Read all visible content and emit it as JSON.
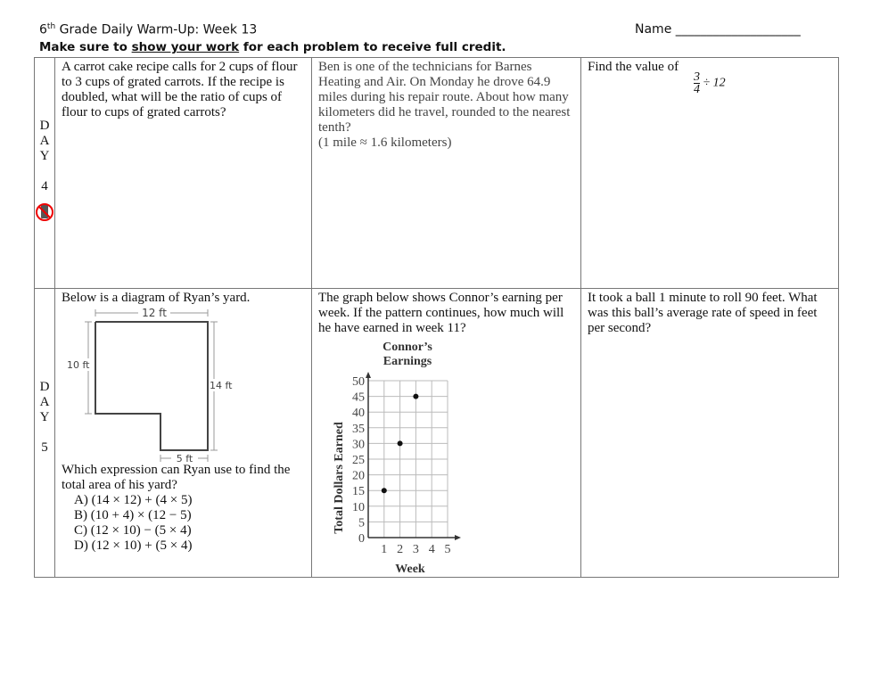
{
  "header": {
    "title_pre": "6",
    "title_sup": "th",
    "title_post": " Grade Daily Warm-Up:  Week 13",
    "name_label": "Name ____________________",
    "instr_pre": "Make sure to ",
    "instr_u": "show your work",
    "instr_post": " for each problem to receive full credit."
  },
  "day4": {
    "label": [
      "D",
      "A",
      "Y",
      "",
      "4"
    ],
    "icon": "no-phone-icon",
    "q1": "A carrot cake recipe calls for 2 cups of flour to 3 cups of grated carrots.  If the recipe is doubled, what will be the ratio of cups of flour to cups of grated carrots?",
    "q2": "Ben is one of the technicians for Barnes Heating and Air. On Monday he drove 64.9 miles during his repair route. About how many kilometers did he travel, rounded to the nearest tenth?",
    "q2_note": "(1 mile ≈ 1.6 kilometers)",
    "q3": "Find the value of",
    "q3_num": "3",
    "q3_den": "4",
    "q3_rest": "÷ 12"
  },
  "day5": {
    "label": [
      "D",
      "A",
      "Y",
      "",
      "5"
    ],
    "q1": "Below is a diagram of Ryan’s yard.",
    "yard": {
      "top": "12 ft",
      "left": "10 ft",
      "right": "14 ft",
      "bottom": "5 ft"
    },
    "q1b": "Which expression can Ryan use to find the total area of his yard?",
    "options": [
      "A)  (14 × 12) + (4 × 5)",
      "B)  (10 + 4) × (12 − 5)",
      "C)  (12 × 10) − (5 × 4)",
      "D)  (12 × 10) + (5 × 4)"
    ],
    "q2": "The graph below shows Connor’s earning per week.  If the pattern continues, how much will he have earned in week 11?",
    "q3": "It took a ball 1 minute to roll 90 feet.  What was this ball’s average rate of speed in feet per second?"
  },
  "chart_data": {
    "type": "scatter",
    "title_lines": [
      "Connor’s",
      "Earnings"
    ],
    "xlabel": "Week",
    "ylabel": "Total Dollars Earned",
    "x": [
      1,
      2,
      3
    ],
    "y": [
      15,
      30,
      45
    ],
    "xlim": [
      0,
      5
    ],
    "ylim": [
      0,
      50
    ],
    "xticks": [
      "1",
      "2",
      "3",
      "4",
      "5"
    ],
    "yticks": [
      "0",
      "5",
      "10",
      "15",
      "20",
      "25",
      "30",
      "35",
      "40",
      "45",
      "50"
    ],
    "grid": true
  }
}
